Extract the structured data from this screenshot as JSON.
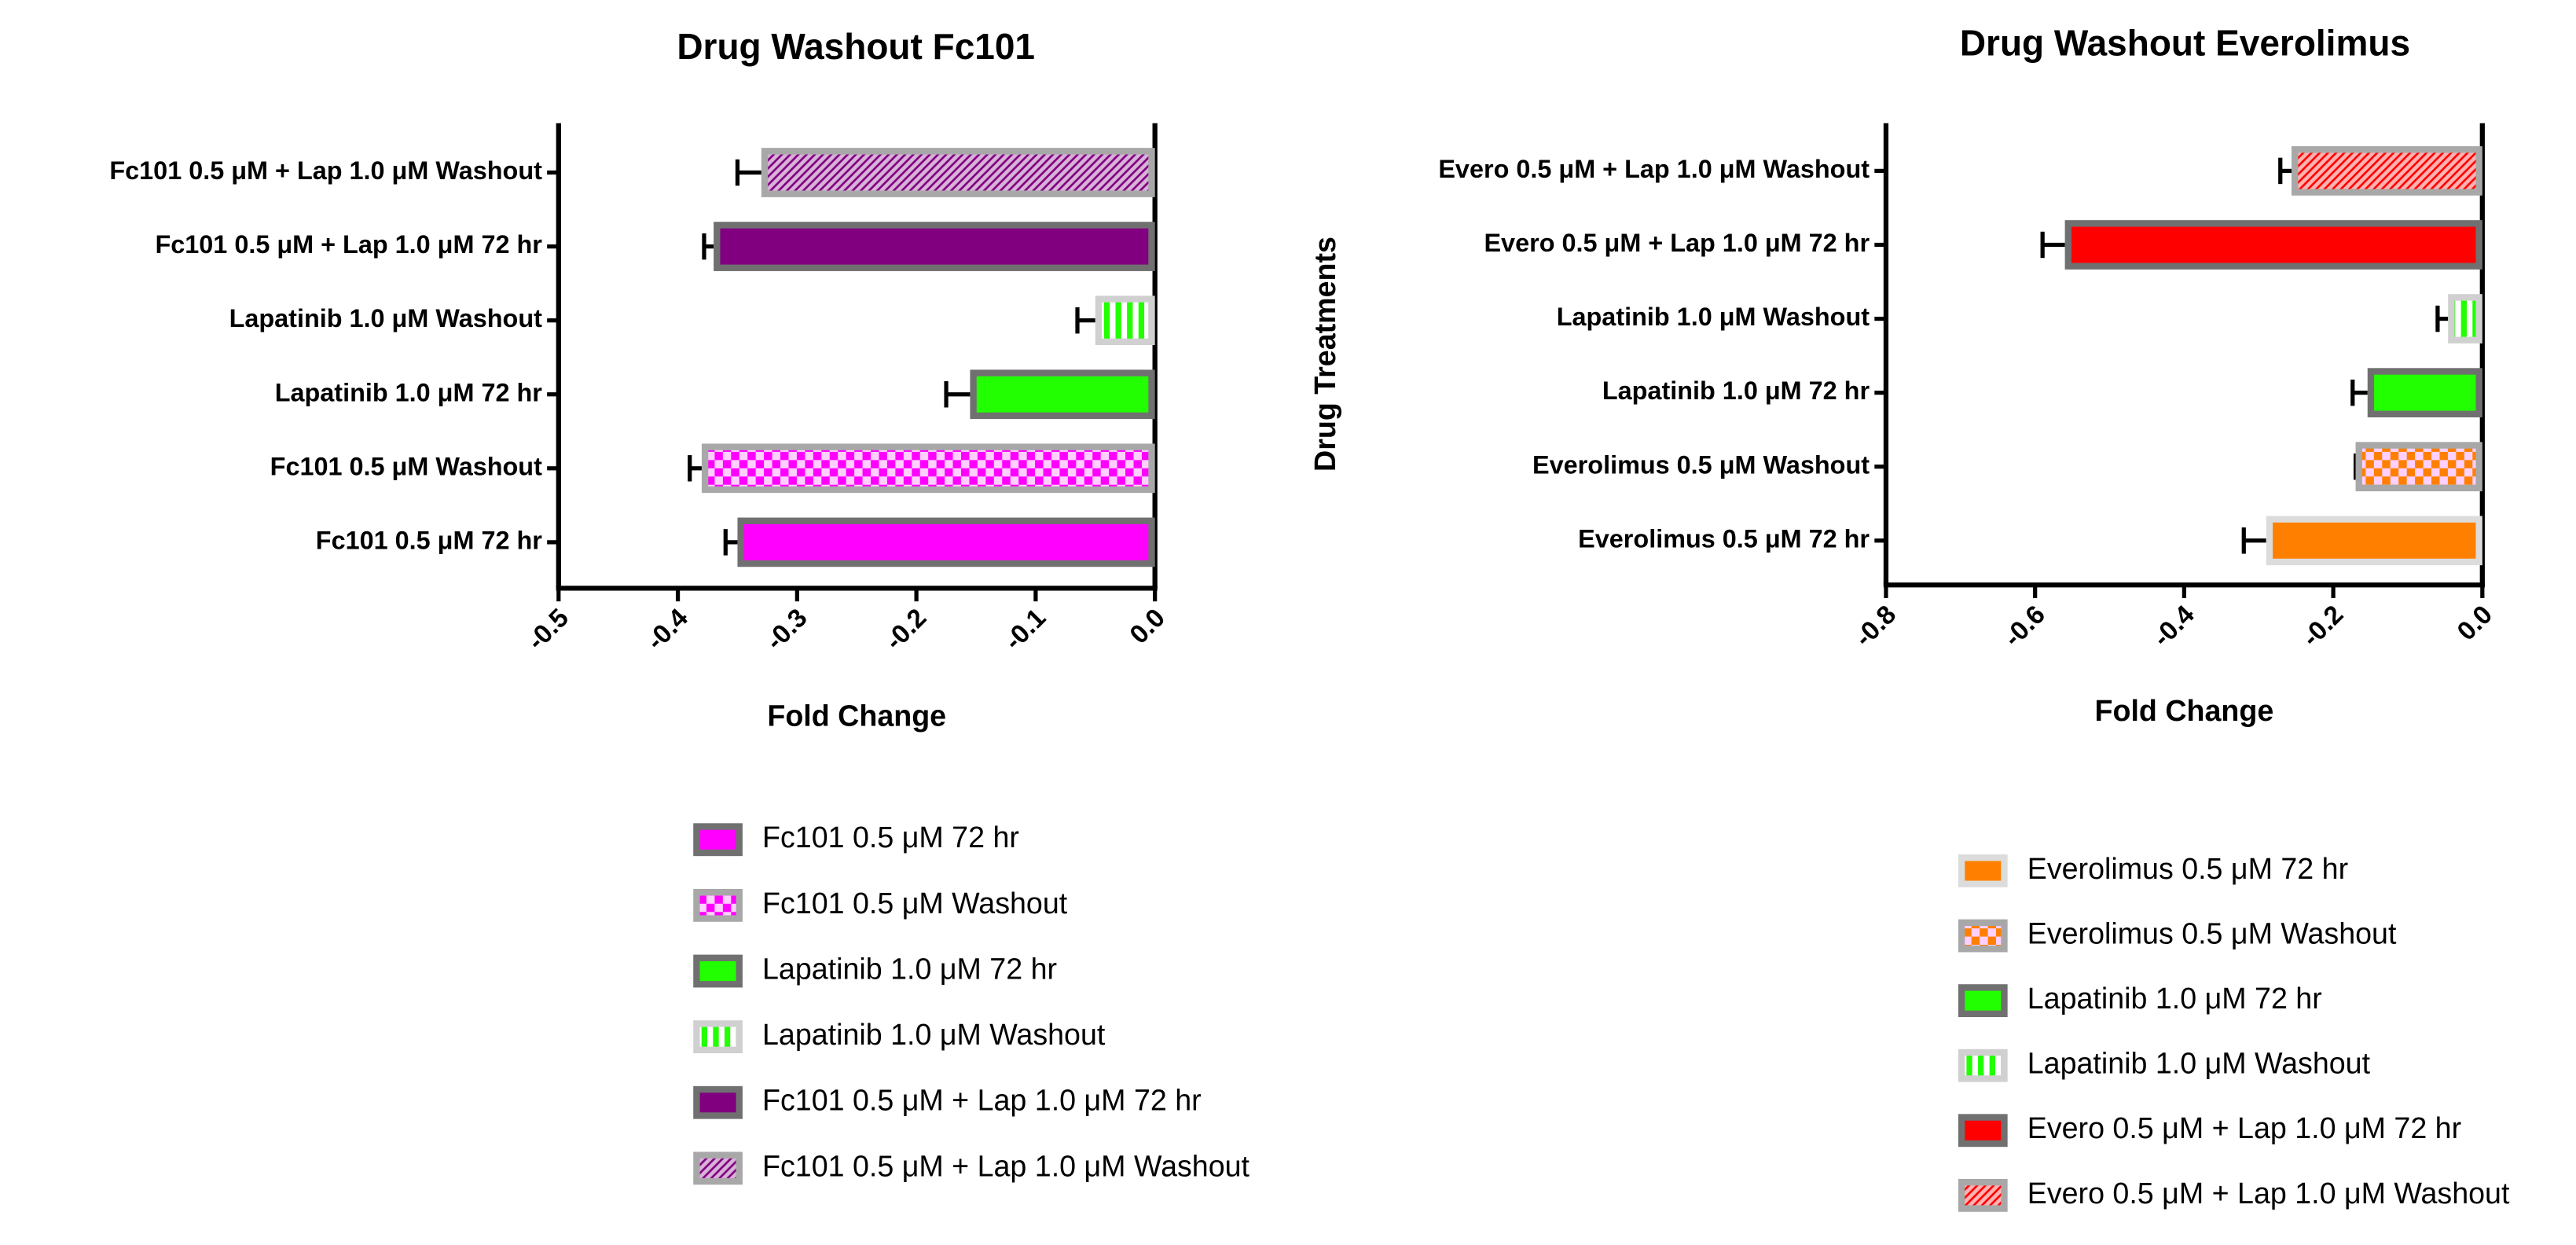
{
  "chart_data": [
    {
      "type": "bar",
      "orientation": "horizontal",
      "title": "Drug Washout Fc101",
      "xlabel": "Fold Change",
      "categories": [
        "Fc101 0.5 μM 72 hr",
        "Fc101 0.5 μM Washout",
        "Lapatinib 1.0 μM 72 hr",
        "Lapatinib 1.0 μM Washout",
        "Fc101 0.5 μM + Lap 1.0 μM 72 hr",
        "Fc101 0.5 μM + Lap 1.0 μM Washout"
      ],
      "values": [
        -0.35,
        -0.38,
        -0.155,
        -0.05,
        -0.37,
        -0.33
      ],
      "errors": [
        0.01,
        0.01,
        0.02,
        0.015,
        0.008,
        0.02
      ],
      "colors": [
        "#ff00ff",
        "#ff00ff",
        "#22ff00",
        "#22ff00",
        "#800080",
        "#800080"
      ],
      "edgecolors": [
        "#707070",
        "#a8a8a8",
        "#707070",
        "#d0d0d0",
        "#707070",
        "#a8a8a8"
      ],
      "patterns": [
        "solid",
        "checker",
        "solid",
        "vertical",
        "solid",
        "diagonal"
      ],
      "xlim": [
        -0.5,
        0
      ],
      "xticks": [
        -0.5,
        -0.4,
        -0.3,
        -0.2,
        -0.1,
        {
          "value": 0,
          "label": "0.0"
        }
      ],
      "legend": "bottom"
    },
    {
      "type": "bar",
      "orientation": "horizontal",
      "title": "Drug Washout Everolimus",
      "xlabel": "Fold Change",
      "ylabel": "Drug Treatments",
      "categories": [
        "Everolimus 0.5 μM 72 hr",
        "Everolimus 0.5 μM Washout",
        "Lapatinib 1.0 μM 72 hr",
        "Lapatinib 1.0 μM Washout",
        "Evero 0.5 μM + Lap 1.0 μM 72 hr",
        "Evero 0.5 μM + Lap 1.0 μM Washout"
      ],
      "values": [
        -0.29,
        -0.17,
        -0.154,
        -0.046,
        -0.56,
        -0.256
      ],
      "errors": [
        0.03,
        0,
        0.02,
        0.014,
        0.03,
        0.015
      ],
      "colors": [
        "#ff8000",
        "#ff8000",
        "#22ff00",
        "#22ff00",
        "#ff0000",
        "#ff0000"
      ],
      "edgecolors": [
        "#dcdcdc",
        "#a8a8a8",
        "#707070",
        "#d0d0d0",
        "#707070",
        "#a8a8a8"
      ],
      "patterns": [
        "solid",
        "checker",
        "solid",
        "vertical",
        "solid",
        "diagonal"
      ],
      "xlim": [
        -0.8,
        0
      ],
      "xticks": [
        -0.8,
        -0.6,
        -0.4,
        -0.2,
        {
          "value": 0,
          "label": "0.0"
        }
      ],
      "legend": "bottom"
    }
  ]
}
